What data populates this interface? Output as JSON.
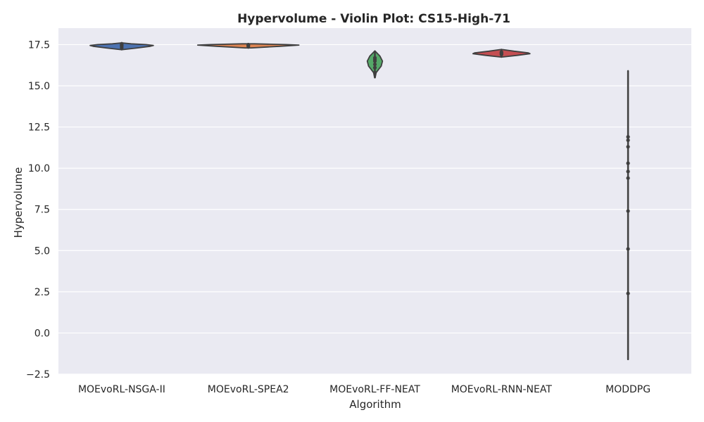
{
  "chart_data": {
    "type": "violin",
    "title": "Hypervolume - Violin Plot: CS15-High-71",
    "xlabel": "Algorithm",
    "ylabel": "Hypervolume",
    "ylim": [
      -2.5,
      18.5
    ],
    "yticks": [
      -2.5,
      0.0,
      2.5,
      5.0,
      7.5,
      10.0,
      12.5,
      15.0,
      17.5
    ],
    "ytick_labels": [
      "−2.5",
      "0.0",
      "2.5",
      "5.0",
      "7.5",
      "10.0",
      "12.5",
      "15.0",
      "17.5"
    ],
    "grid": true,
    "background": "#eaeaf2",
    "categories": [
      "MOEvoRL-NSGA-II",
      "MOEvoRL-SPEA2",
      "MOEvoRL-FF-NEAT",
      "MOEvoRL-RNN-NEAT",
      "MODDPG"
    ],
    "series": [
      {
        "color": "#4c72b0",
        "range": [
          17.2,
          17.6
        ],
        "points": [
          17.3,
          17.4,
          17.45,
          17.5,
          17.55
        ],
        "density": [
          [
            17.2,
            0.02
          ],
          [
            17.3,
            0.25
          ],
          [
            17.4,
            0.45
          ],
          [
            17.45,
            0.5
          ],
          [
            17.5,
            0.38
          ],
          [
            17.55,
            0.15
          ],
          [
            17.6,
            0.02
          ]
        ]
      },
      {
        "color": "#dd8452",
        "range": [
          17.3,
          17.55
        ],
        "points": [
          17.4,
          17.45,
          17.5
        ],
        "density": [
          [
            17.3,
            0.05
          ],
          [
            17.4,
            0.5
          ],
          [
            17.47,
            0.8
          ],
          [
            17.5,
            0.6
          ],
          [
            17.55,
            0.1
          ]
        ]
      },
      {
        "color": "#55a868",
        "range": [
          15.5,
          17.1
        ],
        "points": [
          15.8,
          16.1,
          16.3,
          16.5,
          16.6,
          16.7
        ],
        "density": [
          [
            15.5,
            0.005
          ],
          [
            15.8,
            0.02
          ],
          [
            16.0,
            0.06
          ],
          [
            16.2,
            0.1
          ],
          [
            16.5,
            0.12
          ],
          [
            16.8,
            0.08
          ],
          [
            17.0,
            0.03
          ],
          [
            17.1,
            0.005
          ]
        ]
      },
      {
        "color": "#c44e52",
        "range": [
          16.75,
          17.2
        ],
        "points": [
          16.9,
          16.95,
          17.0,
          17.05
        ],
        "density": [
          [
            16.75,
            0.02
          ],
          [
            16.85,
            0.25
          ],
          [
            16.95,
            0.45
          ],
          [
            17.0,
            0.42
          ],
          [
            17.1,
            0.2
          ],
          [
            17.2,
            0.02
          ]
        ]
      },
      {
        "color": "#8172b3",
        "range": [
          -1.6,
          15.9
        ],
        "points": [
          2.4,
          5.1,
          7.4,
          9.4,
          9.8,
          10.3,
          11.3,
          11.7,
          11.9
        ],
        "density": [
          [
            -1.6,
            0.001
          ],
          [
            15.9,
            0.001
          ]
        ]
      }
    ]
  }
}
